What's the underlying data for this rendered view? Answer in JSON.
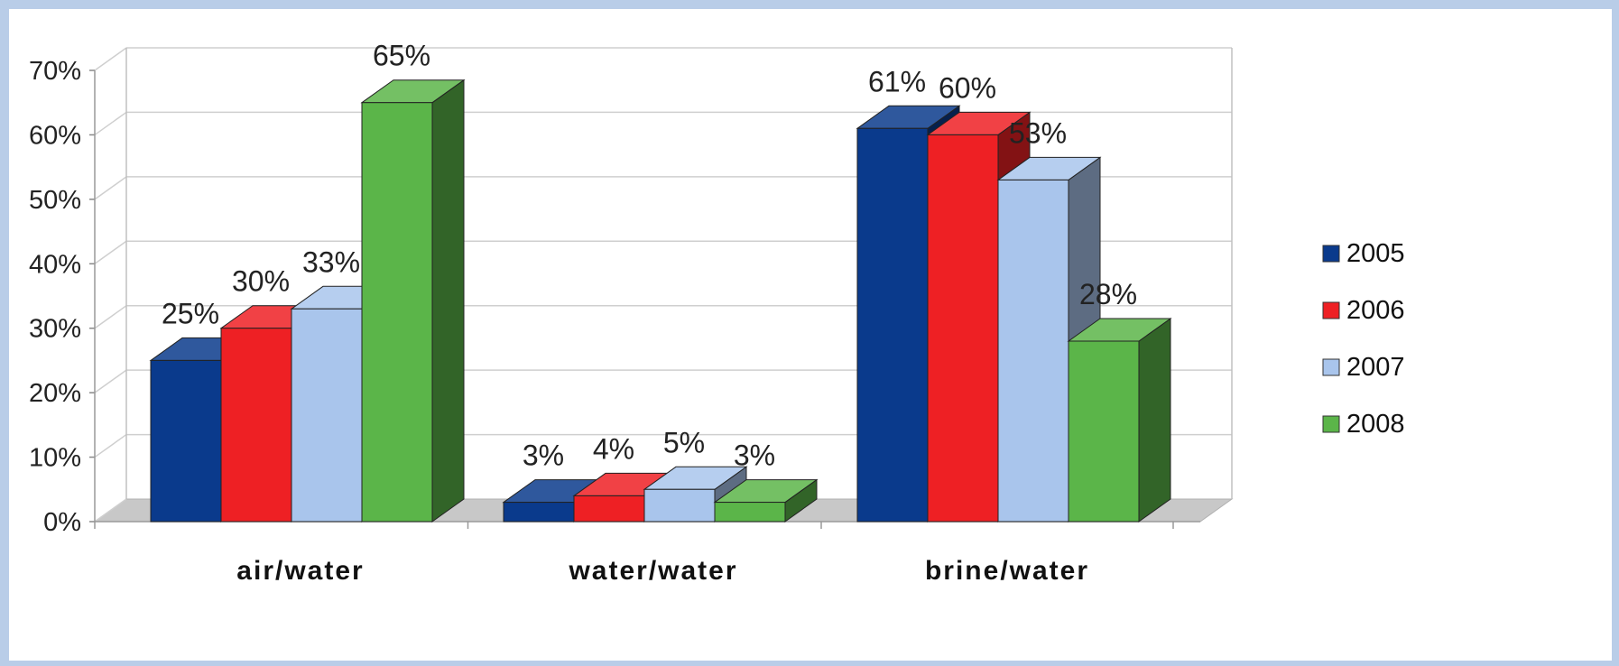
{
  "chart_data": {
    "type": "bar",
    "subtype": "3d-clustered-column",
    "categories": [
      "air/water",
      "water/water",
      "brine/water"
    ],
    "series": [
      {
        "name": "2005",
        "values": [
          25,
          3,
          61
        ],
        "color": "#0a3a8c"
      },
      {
        "name": "2006",
        "values": [
          30,
          4,
          60
        ],
        "color": "#ee2024"
      },
      {
        "name": "2007",
        "values": [
          33,
          5,
          53
        ],
        "color": "#a9c5ec"
      },
      {
        "name": "2008",
        "values": [
          65,
          3,
          28
        ],
        "color": "#5bb549"
      }
    ],
    "data_labels": [
      [
        "25%",
        "3%",
        "61%"
      ],
      [
        "30%",
        "4%",
        "60%"
      ],
      [
        "33%",
        "5%",
        "53%"
      ],
      [
        "65%",
        "3%",
        "28%"
      ]
    ],
    "y_ticks": [
      "0%",
      "10%",
      "20%",
      "30%",
      "40%",
      "50%",
      "60%",
      "70%"
    ],
    "ylim": [
      0,
      70
    ],
    "unit": "%",
    "grid": true,
    "legend_position": "right",
    "title": "",
    "xlabel": "",
    "ylabel": ""
  }
}
